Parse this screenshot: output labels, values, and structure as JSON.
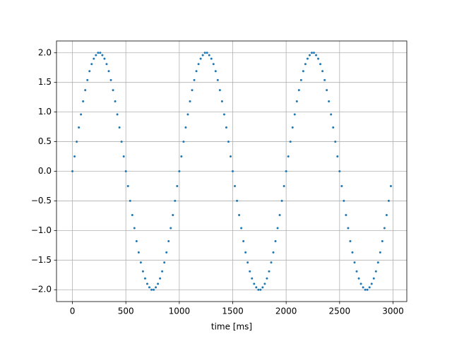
{
  "chart_data": {
    "type": "scatter",
    "xlabel": "time [ms]",
    "color": "#1f77b4",
    "grid": true,
    "xlim": [
      -149,
      3129
    ],
    "ylim": [
      -2.2,
      2.2
    ],
    "xticks": [
      0,
      500,
      1000,
      1500,
      2000,
      2500,
      3000
    ],
    "yticks": [
      {
        "value": -2,
        "label": "−2.0"
      },
      {
        "value": -1.5,
        "label": "−1.5"
      },
      {
        "value": -1,
        "label": "−1.0"
      },
      {
        "value": -0.5,
        "label": "−0.5"
      },
      {
        "value": 0,
        "label": "0.0"
      },
      0.5,
      {
        "value": 1,
        "label": "1.0"
      },
      1.5,
      {
        "value": 2,
        "label": "2.0"
      }
    ],
    "x": [
      0,
      20,
      40,
      60,
      80,
      100,
      120,
      140,
      160,
      180,
      200,
      220,
      240,
      260,
      280,
      300,
      320,
      340,
      360,
      380,
      400,
      420,
      440,
      460,
      480,
      500,
      520,
      540,
      560,
      580,
      600,
      620,
      640,
      660,
      680,
      700,
      720,
      740,
      760,
      780,
      800,
      820,
      840,
      860,
      880,
      900,
      920,
      940,
      960,
      980,
      1000,
      1020,
      1040,
      1060,
      1080,
      1100,
      1120,
      1140,
      1160,
      1180,
      1200,
      1220,
      1240,
      1260,
      1280,
      1300,
      1320,
      1340,
      1360,
      1380,
      1400,
      1420,
      1440,
      1460,
      1480,
      1500,
      1520,
      1540,
      1560,
      1580,
      1600,
      1620,
      1640,
      1660,
      1680,
      1700,
      1720,
      1740,
      1760,
      1780,
      1800,
      1820,
      1840,
      1860,
      1880,
      1900,
      1920,
      1940,
      1960,
      1980,
      2000,
      2020,
      2040,
      2060,
      2080,
      2100,
      2120,
      2140,
      2160,
      2180,
      2200,
      2220,
      2240,
      2260,
      2280,
      2300,
      2320,
      2340,
      2360,
      2380,
      2400,
      2420,
      2440,
      2460,
      2480,
      2500,
      2520,
      2540,
      2560,
      2580,
      2600,
      2620,
      2640,
      2660,
      2680,
      2700,
      2720,
      2740,
      2760,
      2780,
      2800,
      2820,
      2840,
      2860,
      2880,
      2900,
      2920,
      2940,
      2960,
      2980
    ],
    "values": [
      0,
      0.25,
      0.5,
      0.74,
      0.96,
      1.18,
      1.37,
      1.54,
      1.69,
      1.81,
      1.9,
      1.96,
      2,
      2,
      1.96,
      1.9,
      1.81,
      1.69,
      1.54,
      1.37,
      1.18,
      0.96,
      0.74,
      0.5,
      0.25,
      0,
      -0.25,
      -0.5,
      -0.74,
      -0.96,
      -1.18,
      -1.37,
      -1.54,
      -1.69,
      -1.81,
      -1.9,
      -1.96,
      -2,
      -2,
      -1.96,
      -1.9,
      -1.81,
      -1.69,
      -1.54,
      -1.37,
      -1.18,
      -0.96,
      -0.74,
      -0.5,
      -0.25,
      0,
      0.25,
      0.5,
      0.74,
      0.96,
      1.18,
      1.37,
      1.54,
      1.69,
      1.81,
      1.9,
      1.96,
      2,
      2,
      1.96,
      1.9,
      1.81,
      1.69,
      1.54,
      1.37,
      1.18,
      0.96,
      0.74,
      0.5,
      0.25,
      0,
      -0.25,
      -0.5,
      -0.74,
      -0.96,
      -1.18,
      -1.37,
      -1.54,
      -1.69,
      -1.81,
      -1.9,
      -1.96,
      -2,
      -2,
      -1.96,
      -1.9,
      -1.81,
      -1.69,
      -1.54,
      -1.37,
      -1.18,
      -0.96,
      -0.74,
      -0.5,
      -0.25,
      0,
      0.25,
      0.5,
      0.74,
      0.96,
      1.18,
      1.37,
      1.54,
      1.69,
      1.81,
      1.9,
      1.96,
      2,
      2,
      1.96,
      1.9,
      1.81,
      1.69,
      1.54,
      1.37,
      1.18,
      0.96,
      0.74,
      0.5,
      0.25,
      0,
      -0.25,
      -0.5,
      -0.74,
      -0.96,
      -1.18,
      -1.37,
      -1.54,
      -1.69,
      -1.81,
      -1.9,
      -1.96,
      -2,
      -2,
      -1.96,
      -1.9,
      -1.81,
      -1.69,
      -1.54,
      -1.37,
      -1.18,
      -0.96,
      -0.74,
      -0.5,
      -0.25
    ]
  }
}
